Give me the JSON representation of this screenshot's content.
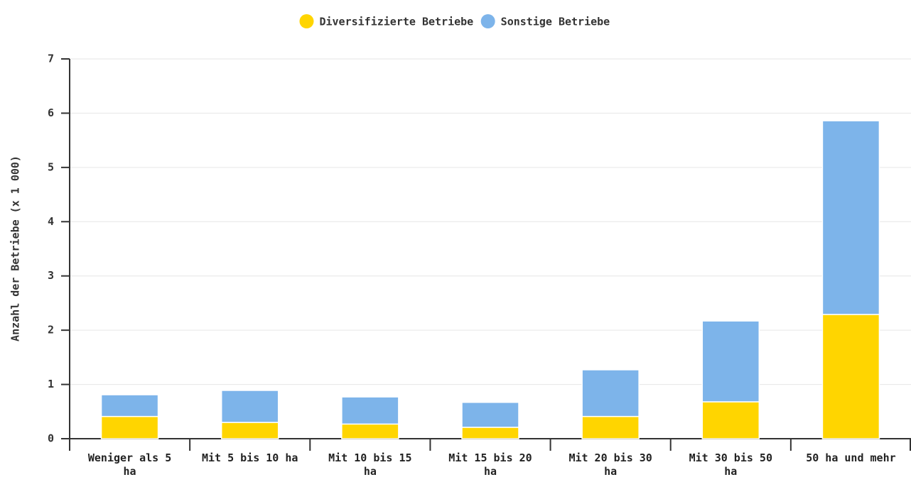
{
  "chart_data": {
    "type": "stacked_bar",
    "categories": [
      "Weniger als 5 ha",
      "Mit 5 bis 10 ha",
      "Mit 10 bis 15 ha",
      "Mit 15 bis 20 ha",
      "Mit 20 bis 30 ha",
      "Mit 30 bis 50 ha",
      "50 ha und mehr"
    ],
    "series": [
      {
        "name": "Diversifizierte Betriebe",
        "color": "#ffd500",
        "values": [
          0.41,
          0.3,
          0.27,
          0.21,
          0.41,
          0.68,
          2.29
        ]
      },
      {
        "name": "Sonstige Betriebe",
        "color": "#7db4ea",
        "values": [
          0.4,
          0.59,
          0.5,
          0.46,
          0.86,
          1.49,
          3.57
        ]
      }
    ],
    "y_label": "Anzahl der Betriebe (x 1 000)",
    "ylim": [
      0,
      7
    ],
    "yticks": [
      0,
      1,
      2,
      3,
      4,
      5,
      6,
      7
    ],
    "grid": true,
    "legend": "top"
  }
}
